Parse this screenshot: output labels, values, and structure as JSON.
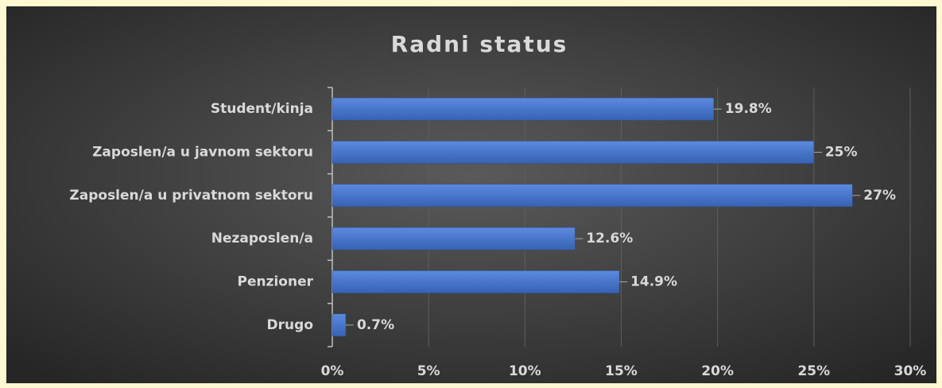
{
  "chart_data": {
    "type": "bar",
    "orientation": "horizontal",
    "title": "Radni status",
    "categories": [
      "Student/kinja",
      "Zaposlen/a u javnom sektoru",
      "Zaposlen/a u privatnom sektoru",
      "Nezaposlen/a",
      "Penzioner",
      "Drugo"
    ],
    "values": [
      19.8,
      25,
      27,
      12.6,
      14.9,
      0.7
    ],
    "value_labels": [
      "19.8%",
      "25%",
      "27%",
      "12.6%",
      "14.9%",
      "0.7%"
    ],
    "color": "#4472c4",
    "xlim": [
      0,
      30
    ],
    "xticks": [
      {
        "value": 0,
        "label": "0%"
      },
      {
        "value": 5,
        "label": "5%"
      },
      {
        "value": 10,
        "label": "10%"
      },
      {
        "value": 15,
        "label": "15%"
      },
      {
        "value": 20,
        "label": "20%"
      },
      {
        "value": 25,
        "label": "25%"
      },
      {
        "value": 30,
        "label": "30%"
      }
    ],
    "grid": true
  }
}
